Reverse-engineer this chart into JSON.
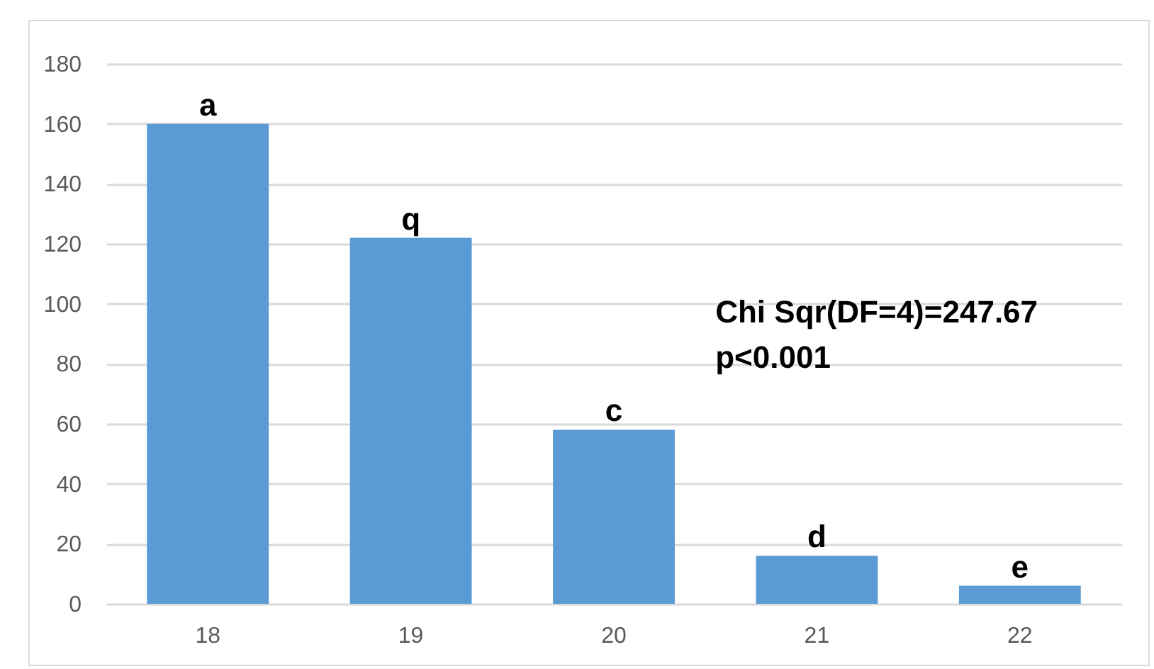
{
  "chart_data": {
    "type": "bar",
    "categories": [
      "18",
      "19",
      "20",
      "21",
      "22"
    ],
    "values": [
      160,
      122,
      58,
      16,
      6
    ],
    "value_labels": [
      "a",
      "q",
      "c",
      "d",
      "e"
    ],
    "color": "#5b9bd5",
    "ylim": [
      0,
      180
    ],
    "yticks": [
      0,
      20,
      40,
      60,
      80,
      100,
      120,
      140,
      160,
      180
    ],
    "grid": "y",
    "annotations": [
      "Chi Sqr(DF=4)=247.67",
      "p<0.001"
    ]
  }
}
